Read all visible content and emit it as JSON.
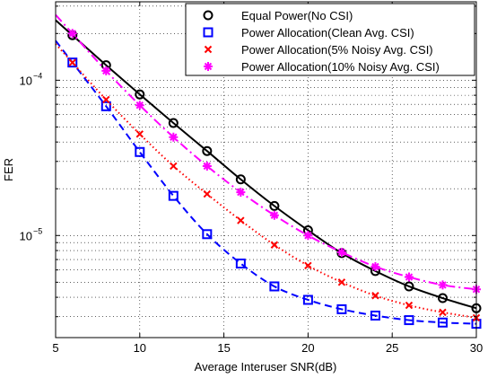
{
  "chart_data": {
    "type": "line",
    "xlabel": "Average Interuser SNR(dB)",
    "ylabel": "FER",
    "xlim": [
      5,
      30
    ],
    "ylim": [
      2.2e-06,
      0.00032
    ],
    "yscale": "log",
    "grid": true,
    "legend_position": "top-right",
    "x_ticks": [
      5,
      10,
      15,
      20,
      25,
      30
    ],
    "x_tick_labels": [
      "5",
      "10",
      "15",
      "20",
      "25",
      "30"
    ],
    "y_ticks": [
      1e-05,
      0.0001
    ],
    "y_tick_labels": [
      {
        "base": "10",
        "exp": "−5"
      },
      {
        "base": "10",
        "exp": "−4"
      }
    ],
    "series": [
      {
        "name": "Equal Power(No CSI)",
        "color": "#000000",
        "line": "solid",
        "marker": "circle",
        "x": [
          6,
          8,
          10,
          12,
          14,
          16,
          18,
          20,
          22,
          24,
          26,
          28,
          30
        ],
        "y": [
          0.000195,
          0.000125,
          8.1e-05,
          5.3e-05,
          3.5e-05,
          2.3e-05,
          1.55e-05,
          1.08e-05,
          7.7e-06,
          5.9e-06,
          4.7e-06,
          3.95e-06,
          3.4e-06
        ]
      },
      {
        "name": "Power Allocation(Clean Avg. CSI)",
        "color": "#0000ff",
        "line": "dashed",
        "marker": "square",
        "x": [
          6,
          8,
          10,
          12,
          14,
          16,
          18,
          20,
          22,
          24,
          26,
          28,
          30
        ],
        "y": [
          0.00013,
          6.8e-05,
          3.45e-05,
          1.8e-05,
          1.02e-05,
          6.6e-06,
          4.7e-06,
          3.85e-06,
          3.35e-06,
          3.05e-06,
          2.85e-06,
          2.75e-06,
          2.7e-06
        ]
      },
      {
        "name": "Power Allocation(5% Noisy Avg. CSI)",
        "color": "#ff0000",
        "line": "dotted",
        "marker": "x",
        "x": [
          6,
          8,
          10,
          12,
          14,
          16,
          18,
          20,
          22,
          24,
          26,
          28,
          30
        ],
        "y": [
          0.00013,
          7.5e-05,
          4.5e-05,
          2.8e-05,
          1.85e-05,
          1.25e-05,
          8.7e-06,
          6.4e-06,
          5e-06,
          4.1e-06,
          3.55e-06,
          3.2e-06,
          2.95e-06
        ]
      },
      {
        "name": "Power Allocation(10% Noisy Avg. CSI)",
        "color": "#ff00ff",
        "line": "dashdot",
        "marker": "asterisk",
        "x": [
          6,
          8,
          10,
          12,
          14,
          16,
          18,
          20,
          22,
          24,
          26,
          28,
          30
        ],
        "y": [
          0.0002,
          0.000115,
          6.9e-05,
          4.3e-05,
          2.8e-05,
          1.9e-05,
          1.35e-05,
          1e-05,
          7.8e-06,
          6.3e-06,
          5.4e-06,
          4.8e-06,
          4.5e-06
        ]
      }
    ]
  }
}
